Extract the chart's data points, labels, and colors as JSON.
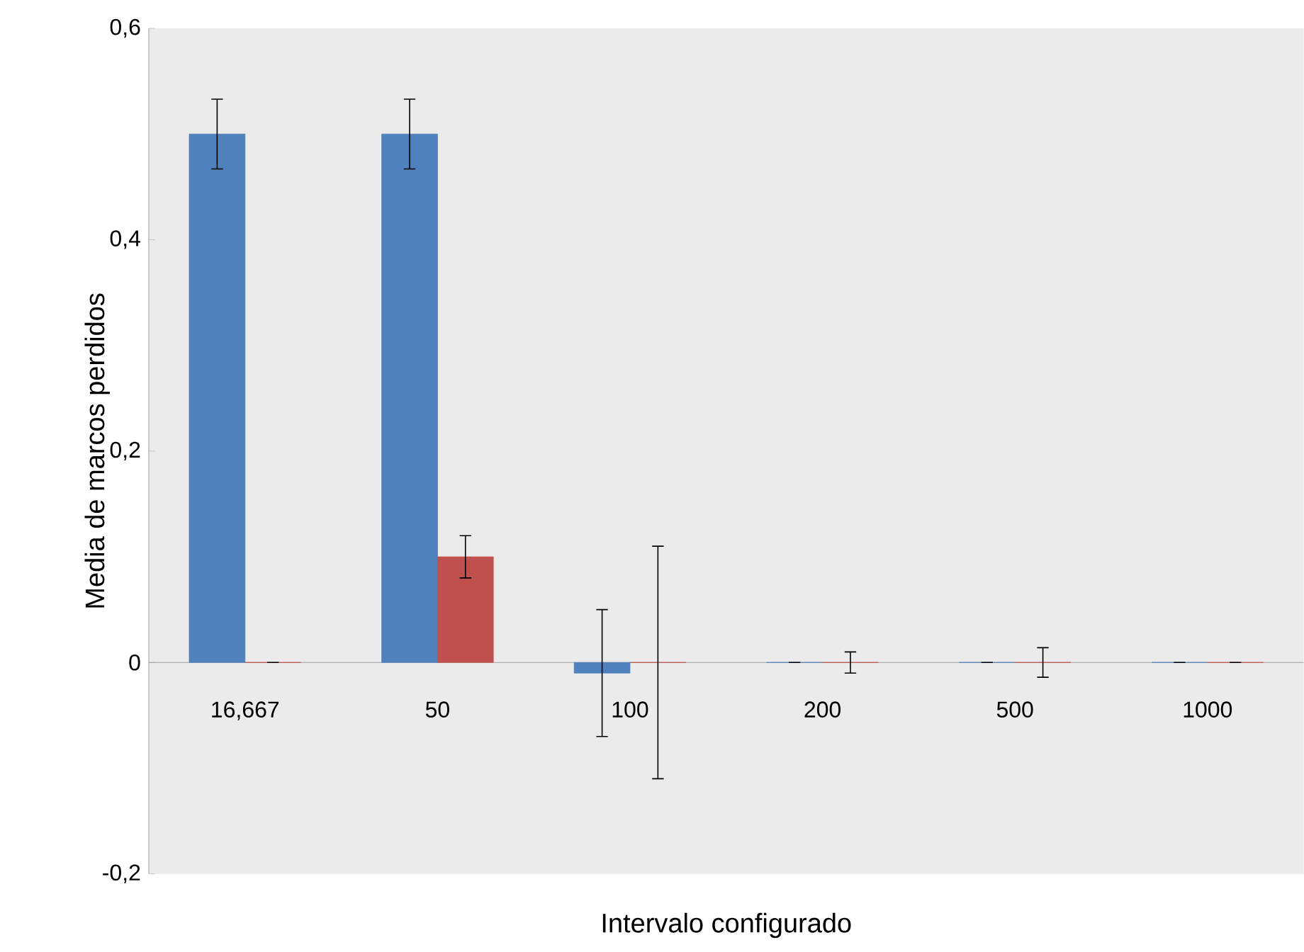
{
  "chart_data": {
    "type": "bar",
    "xlabel": "Intervalo configurado",
    "ylabel": "Media de marcos perdidos",
    "categories": [
      "16,667",
      "50",
      "100",
      "200",
      "500",
      "1000"
    ],
    "series": [
      {
        "color": "#4f81bd",
        "values": [
          0.5,
          0.5,
          -0.01,
          0,
          0,
          0
        ],
        "errors": [
          0.033,
          0.033,
          0.06,
          0,
          0,
          0
        ]
      },
      {
        "color": "#c0504d",
        "values": [
          0,
          0.1,
          0,
          0,
          0,
          0
        ],
        "errors": [
          0,
          0.02,
          0.11,
          0.01,
          0.014,
          0
        ]
      }
    ],
    "ylim": [
      -0.2,
      0.6
    ],
    "yticks": [
      {
        "value": -0.2,
        "label": "-0,2"
      },
      0,
      {
        "value": 0.2,
        "label": "0,2"
      },
      {
        "value": 0.4,
        "label": "0,4"
      },
      {
        "value": 0.6,
        "label": "0,6"
      }
    ],
    "grid": false
  }
}
